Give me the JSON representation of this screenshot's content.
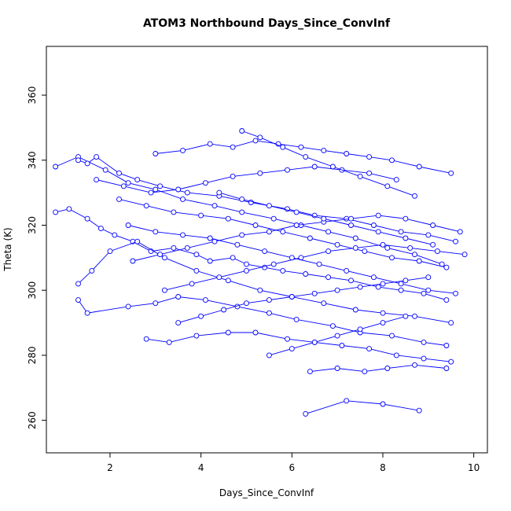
{
  "chart_data": {
    "type": "line",
    "title": "ATOM3 Northbound Days_Since_ConvInf",
    "xlabel": "Days_Since_ConvInf",
    "ylabel": "Theta (K)",
    "xlim": [
      0.6,
      10.3
    ],
    "ylim": [
      250,
      375
    ],
    "x_ticks": [
      2,
      4,
      6,
      8,
      10
    ],
    "y_ticks": [
      260,
      280,
      300,
      320,
      340,
      360
    ],
    "color": "#0000ff",
    "marker": "open-circle",
    "series": [
      {
        "x": [
          0.8,
          1.1,
          1.5,
          1.8,
          2.1,
          2.5,
          2.9,
          3.4,
          3.9,
          4.2,
          4.7,
          5.0,
          5.4,
          5.8,
          6.3,
          6.8,
          7.3,
          7.9,
          8.4,
          8.9,
          9.4
        ],
        "y": [
          324,
          325,
          322,
          319,
          317,
          315,
          312,
          313,
          311,
          309,
          310,
          308,
          307,
          306,
          305,
          304,
          303,
          301,
          300,
          299,
          297
        ]
      },
      {
        "x": [
          0.8,
          1.3,
          1.9,
          2.4,
          3.0,
          3.6,
          4.3,
          4.9,
          5.6,
          6.2,
          6.8,
          7.4,
          8.1,
          8.7,
          9.3
        ],
        "y": [
          338,
          341,
          337,
          333,
          331,
          328,
          326,
          324,
          322,
          320,
          318,
          316,
          313,
          311,
          308
        ]
      },
      {
        "x": [
          1.3,
          1.5,
          1.7,
          2.2,
          2.6,
          3.1,
          3.7,
          4.4,
          5.1,
          5.9,
          6.5,
          7.2,
          7.8,
          8.4,
          9.0,
          9.6
        ],
        "y": [
          340,
          339,
          341,
          336,
          334,
          332,
          330,
          329,
          327,
          325,
          323,
          322,
          320,
          318,
          317,
          315
        ]
      },
      {
        "x": [
          1.3,
          1.6,
          2.0,
          2.6,
          3.2,
          3.9,
          4.6,
          5.3,
          6.0,
          6.7,
          7.4,
          8.0,
          8.7,
          9.5
        ],
        "y": [
          302,
          306,
          312,
          315,
          310,
          306,
          303,
          300,
          298,
          296,
          294,
          293,
          292,
          290
        ]
      },
      {
        "x": [
          1.3,
          1.5,
          2.4,
          3.0,
          3.5,
          4.1,
          4.8,
          5.5,
          6.1,
          6.9,
          7.5,
          8.2,
          8.9,
          9.4
        ],
        "y": [
          297,
          293,
          295,
          296,
          298,
          297,
          295,
          293,
          291,
          289,
          287,
          286,
          284,
          283
        ]
      },
      {
        "x": [
          2.8,
          3.3,
          3.9,
          4.6,
          5.2,
          5.9,
          6.5,
          7.1,
          7.7,
          8.3,
          8.9,
          9.5
        ],
        "y": [
          285,
          284,
          286,
          287,
          287,
          285,
          284,
          283,
          282,
          280,
          279,
          278
        ]
      },
      {
        "x": [
          6.3,
          7.2,
          8.0,
          8.8
        ],
        "y": [
          262,
          266,
          265,
          263
        ]
      },
      {
        "x": [
          6.4,
          7.0,
          7.6,
          8.1,
          8.7,
          9.4
        ],
        "y": [
          275,
          276,
          275,
          276,
          277,
          276
        ]
      },
      {
        "x": [
          3.0,
          3.6,
          4.2,
          4.7,
          5.2,
          5.7,
          6.2,
          6.7,
          7.2,
          7.7,
          8.2,
          8.8,
          9.5
        ],
        "y": [
          342,
          343,
          345,
          344,
          346,
          345,
          344,
          343,
          342,
          341,
          340,
          338,
          336
        ]
      },
      {
        "x": [
          2.2,
          2.8,
          3.4,
          4.0,
          4.6,
          5.2,
          5.8,
          6.4,
          7.0,
          7.6,
          8.2,
          8.8,
          9.4
        ],
        "y": [
          328,
          326,
          324,
          323,
          322,
          320,
          318,
          316,
          314,
          312,
          310,
          309,
          307
        ]
      },
      {
        "x": [
          2.5,
          3.1,
          3.7,
          4.3,
          4.9,
          5.5,
          6.1,
          6.7,
          7.3,
          7.9,
          8.5,
          9.1,
          9.7
        ],
        "y": [
          309,
          311,
          313,
          315,
          317,
          318,
          320,
          321,
          322,
          323,
          322,
          320,
          318
        ]
      },
      {
        "x": [
          1.7,
          2.3,
          2.9,
          3.5,
          4.1,
          4.7,
          5.3,
          5.9,
          6.5,
          7.1,
          7.7,
          8.3
        ],
        "y": [
          334,
          332,
          330,
          331,
          333,
          335,
          336,
          337,
          338,
          337,
          336,
          334
        ]
      },
      {
        "x": [
          3.2,
          3.8,
          4.4,
          5.0,
          5.6,
          6.2,
          6.8,
          7.4,
          8.0,
          8.6,
          9.2,
          9.8
        ],
        "y": [
          300,
          302,
          304,
          306,
          308,
          310,
          312,
          313,
          314,
          313,
          312,
          311
        ]
      },
      {
        "x": [
          4.9,
          5.3,
          5.8,
          6.3,
          6.9,
          7.5,
          8.1,
          8.7
        ],
        "y": [
          349,
          347,
          344,
          341,
          338,
          335,
          332,
          329
        ]
      },
      {
        "x": [
          2.4,
          3.0,
          3.6,
          4.2,
          4.8,
          5.4,
          6.0,
          6.6,
          7.2,
          7.8,
          8.4,
          9.0,
          9.6
        ],
        "y": [
          320,
          318,
          317,
          316,
          314,
          312,
          310,
          308,
          306,
          304,
          302,
          300,
          299
        ]
      },
      {
        "x": [
          3.5,
          4.0,
          4.5,
          5.0,
          5.5,
          6.0,
          6.5,
          7.0,
          7.5,
          8.0,
          8.5,
          9.0
        ],
        "y": [
          290,
          292,
          294,
          296,
          297,
          298,
          299,
          300,
          301,
          302,
          303,
          304
        ]
      },
      {
        "x": [
          5.5,
          6.0,
          6.5,
          7.0,
          7.5,
          8.0,
          8.5
        ],
        "y": [
          280,
          282,
          284,
          286,
          288,
          290,
          292
        ]
      },
      {
        "x": [
          4.4,
          4.9,
          5.5,
          6.1,
          6.7,
          7.3,
          7.9,
          8.5,
          9.1
        ],
        "y": [
          330,
          328,
          326,
          324,
          322,
          320,
          318,
          316,
          314
        ]
      }
    ]
  }
}
